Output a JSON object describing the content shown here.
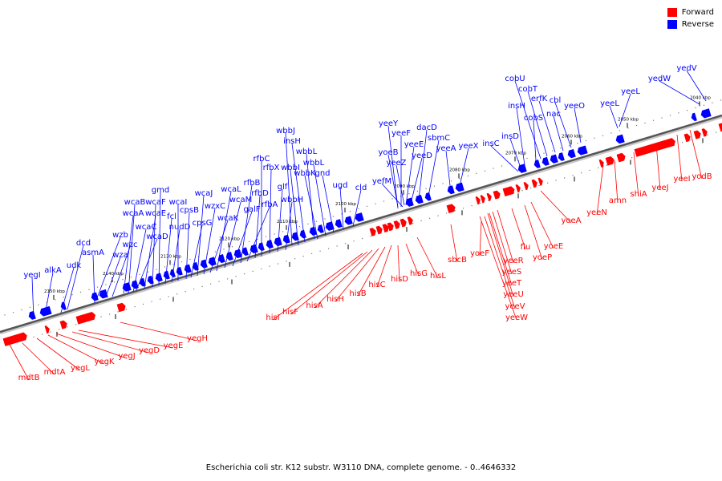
{
  "legend": {
    "forward": {
      "label": "Forward",
      "color": "#ff0000"
    },
    "reverse": {
      "label": "Reverse",
      "color": "#0000ff"
    }
  },
  "caption": "Escherichia coli str. K12 substr. W3110 DNA, complete genome. - 0..4646332",
  "scale_labels": [
    "2040 kbp",
    "2050 kbp",
    "2060 kbp",
    "2070 kbp",
    "2080 kbp",
    "2090 kbp",
    "2100 kbp",
    "2110 kbp",
    "2120 kbp",
    "2130 kbp",
    "2140 kbp",
    "2150 kbp"
  ],
  "reverse_genes": [
    "yedV",
    "yedW",
    "yeeL",
    "yeeL",
    "yeeO",
    "cbl",
    "nac",
    "erfK",
    "cobT",
    "cobU",
    "cobS",
    "insH",
    "insD",
    "insC",
    "yeeX",
    "yeeA",
    "sbmC",
    "dacD",
    "yeeD",
    "yeeE",
    "yeeF",
    "yeeY",
    "yeeZ",
    "yoeB",
    "yefM",
    "cld",
    "ugd",
    "gnd",
    "wbbL",
    "wbbK",
    "wbbL",
    "insH",
    "wbbI",
    "wbbJ",
    "wbbH",
    "glf",
    "rfbX",
    "rfbC",
    "rfbD",
    "rfbA",
    "rfbB",
    "galF",
    "wcaM",
    "wcaL",
    "wcaK",
    "wzxC",
    "wcaJ",
    "cpsG",
    "cpsB",
    "wcaI",
    "nudD",
    "fcl",
    "gmd",
    "wcaF",
    "wcaE",
    "wcaD",
    "wcaC",
    "wcaB",
    "wcaA",
    "wza",
    "wzc",
    "wzb",
    "asmA",
    "dcd",
    "udk",
    "alkA",
    "yegI"
  ],
  "forward_genes": [
    "yodB",
    "yeeI",
    "yeeJ",
    "shiA",
    "amn",
    "yeeN",
    "yoeA",
    "yoeE",
    "yoeP",
    "flu",
    "yeeR",
    "yeeS",
    "yeeT",
    "yeeU",
    "yeeV",
    "yeeW",
    "yoeF",
    "sbcB",
    "hisL",
    "hisG",
    "hisD",
    "hisC",
    "hisB",
    "hisH",
    "hisA",
    "hisF",
    "hisI",
    "yegH",
    "yegE",
    "yegD",
    "yegJ",
    "yegK",
    "yegL",
    "mdtA",
    "mdtB"
  ]
}
